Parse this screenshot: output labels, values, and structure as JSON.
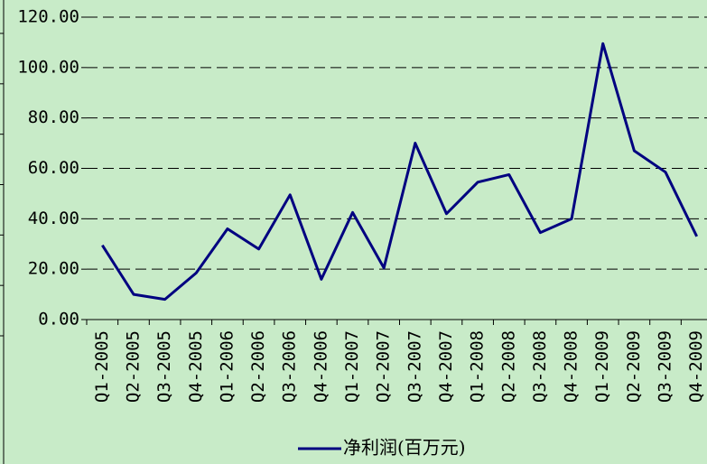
{
  "chart_data": {
    "type": "line",
    "categories": [
      "Q1-2005",
      "Q2-2005",
      "Q3-2005",
      "Q4-2005",
      "Q1-2006",
      "Q2-2006",
      "Q3-2006",
      "Q4-2006",
      "Q1-2007",
      "Q2-2007",
      "Q3-2007",
      "Q4-2007",
      "Q1-2008",
      "Q2-2008",
      "Q3-2008",
      "Q4-2008",
      "Q1-2009",
      "Q2-2009",
      "Q3-2009",
      "Q4-2009"
    ],
    "series": [
      {
        "name": "净利润(百万元)",
        "color": "#000080",
        "values": [
          29.5,
          10,
          8,
          18.5,
          36,
          28,
          49.5,
          16,
          42.5,
          20.5,
          70,
          42,
          54.5,
          57.5,
          34.5,
          40,
          109.5,
          67,
          58.5,
          33
        ]
      }
    ],
    "ylim": [
      0,
      120
    ],
    "yticks": [
      {
        "value": 0,
        "label": "0.00"
      },
      {
        "value": 20,
        "label": "20.00"
      },
      {
        "value": 40,
        "label": "40.00"
      },
      {
        "value": 60,
        "label": "60.00"
      },
      {
        "value": 80,
        "label": "80.00"
      },
      {
        "value": 100,
        "label": "100.00"
      },
      {
        "value": 120,
        "label": "120.00"
      }
    ],
    "grid": true,
    "legend": "bottom"
  }
}
